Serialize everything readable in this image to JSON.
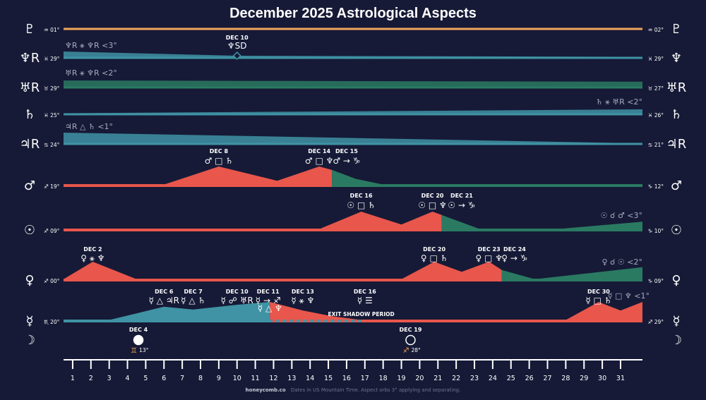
{
  "title": "December 2025 Astrological Aspects",
  "footer": {
    "brand": "honeycomb.co",
    "note": "Dates in US Mountain Time. Aspect orbs 3° applying and separating."
  },
  "colors": {
    "background": "#161a36",
    "red": "#e8564c",
    "green": "#2a7a62",
    "teal": "#3f93a4",
    "orange": "#f2a55a",
    "axis": "#ffffff"
  },
  "rows": [
    {
      "planet": "Pluto",
      "glyph_left": "♇",
      "glyph_right": "♇",
      "start": "♒ 01°",
      "end": "♒ 02°"
    },
    {
      "planet": "Neptune",
      "glyph_left": "♆R",
      "glyph_right": "♆",
      "start": "♓ 29°",
      "end": "♓ 29°"
    },
    {
      "planet": "Uranus",
      "glyph_left": "♅R",
      "glyph_right": "♅R",
      "start": "♉ 29°",
      "end": "♉ 27°"
    },
    {
      "planet": "Saturn",
      "glyph_left": "♄",
      "glyph_right": "♄",
      "start": "♓ 25°",
      "end": "♓ 26°"
    },
    {
      "planet": "Jupiter",
      "glyph_left": "♃R",
      "glyph_right": "♃R",
      "start": "♋ 24°",
      "end": "♋ 21°"
    },
    {
      "planet": "Mars",
      "glyph_left": "♂",
      "glyph_right": "♂",
      "start": "♐ 19°",
      "end": "♑ 12°"
    },
    {
      "planet": "Sun",
      "glyph_left": "☉",
      "glyph_right": "☉",
      "start": "♐ 09°",
      "end": "♑ 10°"
    },
    {
      "planet": "Venus",
      "glyph_left": "♀",
      "glyph_right": "♀",
      "start": "♐ 00°",
      "end": "♑ 09°"
    },
    {
      "planet": "Mercury",
      "glyph_left": "☿",
      "glyph_right": "☿",
      "start": "♏ 20°",
      "end": "♐ 29°"
    },
    {
      "planet": "Moon",
      "glyph_left": "☽",
      "glyph_right": "☽",
      "start": "",
      "end": ""
    }
  ],
  "orb_notes": [
    {
      "row": "Neptune",
      "text": "♆R ⚹ ♆R <3°"
    },
    {
      "row": "Uranus",
      "text": "♅R ⚹ ♆R <2°"
    },
    {
      "row": "Saturn",
      "text": "♄ ⚹ ♅R <2°"
    },
    {
      "row": "Jupiter",
      "text": "♃R △ ♄ <1°"
    },
    {
      "row": "Sun",
      "text": "☉ ☌ ♂ <3°"
    },
    {
      "row": "Venus",
      "text": "♀ ☌ ☉ <2°"
    },
    {
      "row": "Mercury",
      "text": "☿ □ ♆ <1°"
    }
  ],
  "events": [
    {
      "row": "Neptune",
      "date": "DEC 10",
      "aspect": "♆SD",
      "day": 10
    },
    {
      "row": "Mars",
      "date": "DEC 8",
      "aspect": "♂ □ ♄",
      "day": 9
    },
    {
      "row": "Mars",
      "date": "DEC 14",
      "aspect": "♂ □ ♆",
      "day": 14.5
    },
    {
      "row": "Mars",
      "date": "DEC 15",
      "aspect": "♂ → ♑",
      "day": 16
    },
    {
      "row": "Sun",
      "date": "DEC 16",
      "aspect": "☉ □ ♄",
      "day": 16.8
    },
    {
      "row": "Sun",
      "date": "DEC 20",
      "aspect": "☉ □ ♆",
      "day": 20.7
    },
    {
      "row": "Sun",
      "date": "DEC 21",
      "aspect": "☉ → ♑",
      "day": 22.3
    },
    {
      "row": "Venus",
      "date": "DEC 2",
      "aspect": "♀ ⚹ ♆",
      "day": 2.1
    },
    {
      "row": "Venus",
      "date": "DEC 20",
      "aspect": "♀ □ ♄",
      "day": 20.8
    },
    {
      "row": "Venus",
      "date": "DEC 23",
      "aspect": "♀ □ ♆",
      "day": 23.8
    },
    {
      "row": "Venus",
      "date": "DEC 24",
      "aspect": "♀ → ♑",
      "day": 25.2
    },
    {
      "row": "Mercury",
      "date": "DEC 6",
      "aspect": "☿ △ ♃R",
      "day": 6
    },
    {
      "row": "Mercury",
      "date": "DEC 7",
      "aspect": "☿ △ ♄",
      "day": 7.6
    },
    {
      "row": "Mercury",
      "date": "DEC 10",
      "aspect": "☿ ☍ ♅R",
      "day": 10
    },
    {
      "row": "Mercury",
      "date": "DEC 11",
      "aspect": "☿ → ♐",
      "day": 11.7
    },
    {
      "row": "Mercury",
      "date": "DEC 13",
      "aspect": "☿ ⚹ ♆",
      "day": 13.6
    },
    {
      "row": "Mercury",
      "date": "DEC 16",
      "aspect": "☿ ☰",
      "day": 17
    },
    {
      "row": "Mercury",
      "date": "DEC 30",
      "aspect": "☿ □ ♄",
      "day": 29.8
    }
  ],
  "sub_events": [
    {
      "row": "Mercury",
      "text": "☿ △ ♆",
      "day": 11.8
    },
    {
      "row": "Mercury",
      "text": "EXIT SHADOW PERIOD",
      "day": 16.8
    }
  ],
  "moon_phases": [
    {
      "date": "DEC 4",
      "phase": "full",
      "sign": "♊",
      "degree": "13°",
      "day": 4.6
    },
    {
      "date": "DEC 19",
      "phase": "new",
      "sign": "♐",
      "degree": "28°",
      "day": 19.5
    }
  ],
  "chart_data": {
    "type": "area",
    "title": "December 2025 Astrological Aspects",
    "x_axis": {
      "label": "",
      "range": [
        1,
        31
      ],
      "ticks": [
        1,
        2,
        3,
        4,
        5,
        6,
        7,
        8,
        9,
        10,
        11,
        12,
        13,
        14,
        15,
        16,
        17,
        18,
        19,
        20,
        21,
        22,
        23,
        24,
        25,
        26,
        27,
        28,
        29,
        30,
        31
      ]
    },
    "series": [
      {
        "row": "Pluto",
        "kind": "flat",
        "color": "#f2a55a",
        "x": [
          0.5,
          32.2
        ],
        "y": [
          0.1,
          0.1
        ]
      },
      {
        "row": "Neptune",
        "kind": "wedge",
        "color": "#3f93a4",
        "x": [
          0.5,
          10,
          32.2
        ],
        "y": [
          0.9,
          0.3,
          0.15
        ]
      },
      {
        "row": "Uranus",
        "kind": "wedge",
        "color": "#2a7a62",
        "x": [
          0.5,
          32.2
        ],
        "y": [
          0.9,
          0.75
        ]
      },
      {
        "row": "Saturn",
        "kind": "wedge",
        "color": "#3f93a4",
        "x": [
          0.5,
          32.2
        ],
        "y": [
          0.15,
          0.7
        ]
      },
      {
        "row": "Jupiter",
        "kind": "wedge",
        "color": "#3f93a4",
        "x": [
          0.5,
          32.2
        ],
        "y": [
          1.0,
          0.05
        ]
      },
      {
        "row": "Mars",
        "kind": "peaks",
        "x": [
          0.5,
          6,
          9,
          12.2,
          14.5,
          15.2,
          16.5,
          18,
          32.2
        ],
        "y": [
          0.05,
          0.05,
          1.0,
          0.25,
          1.0,
          0.82,
          0.35,
          0.05,
          0.05
        ],
        "segments": [
          {
            "from": 0.5,
            "to": 15.2,
            "color": "#e8564c"
          },
          {
            "from": 15.2,
            "to": 32.2,
            "color": "#2a7a62"
          }
        ]
      },
      {
        "row": "Sun",
        "kind": "peaks",
        "x": [
          0.5,
          14.5,
          16.8,
          19,
          20.7,
          21.2,
          23.3,
          27.5,
          32.2
        ],
        "y": [
          0.05,
          0.05,
          1.0,
          0.3,
          1.0,
          0.82,
          0.05,
          0.05,
          0.45
        ],
        "segments": [
          {
            "from": 0.5,
            "to": 21.2,
            "color": "#e8564c"
          },
          {
            "from": 21.2,
            "to": 32.2,
            "color": "#2a7a62"
          }
        ]
      },
      {
        "row": "Venus",
        "kind": "peaks",
        "x": [
          0.5,
          2.1,
          4.5,
          19,
          20.8,
          22.3,
          23.8,
          24.5,
          26.3,
          32.2
        ],
        "y": [
          0.05,
          1.0,
          0.05,
          0.05,
          1.0,
          0.45,
          1.0,
          0.55,
          0.05,
          0.7
        ],
        "segments": [
          {
            "from": 0.5,
            "to": 24.5,
            "color": "#e8564c"
          },
          {
            "from": 24.5,
            "to": 32.2,
            "color": "#2a7a62"
          }
        ]
      },
      {
        "row": "Mercury",
        "kind": "peaks",
        "x": [
          0.5,
          3,
          6,
          7.6,
          10,
          11.8,
          13.6,
          15.2,
          16.8,
          28,
          29.8,
          31,
          32.2
        ],
        "y": [
          0.05,
          0.05,
          0.75,
          0.6,
          0.85,
          1.0,
          0.55,
          0.25,
          0.05,
          0.05,
          1.0,
          0.55,
          1.0
        ],
        "segments": [
          {
            "from": 0.5,
            "to": 11.8,
            "color": "#3f93a4"
          },
          {
            "from": 11.8,
            "to": 32.2,
            "color": "#e8564c"
          }
        ]
      }
    ]
  }
}
